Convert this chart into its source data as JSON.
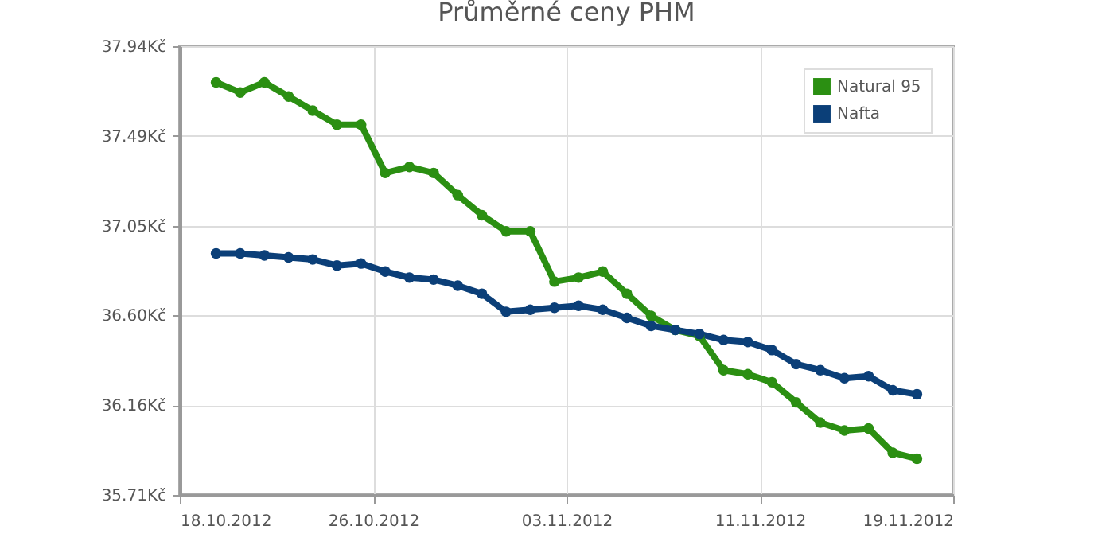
{
  "chart_data": {
    "type": "line",
    "title": "Průměrné ceny PHM",
    "x": [
      "2012-10-19T12:00",
      "2012-10-20T12:00",
      "2012-10-21T12:00",
      "2012-10-22T12:00",
      "2012-10-23T12:00",
      "2012-10-24T12:00",
      "2012-10-25T12:00",
      "2012-10-26T12:00",
      "2012-10-27T12:00",
      "2012-10-28T12:00",
      "2012-10-29T12:00",
      "2012-10-30T12:00",
      "2012-10-31T12:00",
      "2012-11-01T12:00",
      "2012-11-02T12:00",
      "2012-11-03T12:00",
      "2012-11-04T12:00",
      "2012-11-05T12:00",
      "2012-11-06T12:00",
      "2012-11-07T12:00",
      "2012-11-08T12:00",
      "2012-11-09T12:00",
      "2012-11-10T12:00",
      "2012-11-11T12:00",
      "2012-11-12T12:00",
      "2012-11-13T12:00",
      "2012-11-14T12:00",
      "2012-11-15T12:00",
      "2012-11-16T12:00",
      "2012-11-17T12:00"
    ],
    "series": [
      {
        "name": "Natural 95",
        "color": "#2b8f12",
        "values": [
          37.76,
          37.71,
          37.76,
          37.69,
          37.62,
          37.55,
          37.55,
          37.31,
          37.34,
          37.31,
          37.2,
          37.1,
          37.02,
          37.02,
          36.77,
          36.79,
          36.82,
          36.71,
          36.6,
          36.53,
          36.5,
          36.33,
          36.31,
          36.27,
          36.17,
          36.07,
          36.03,
          36.04,
          35.92,
          35.89
        ]
      },
      {
        "name": "Nafta",
        "color": "#0b3f78",
        "values": [
          36.91,
          36.91,
          36.9,
          36.89,
          36.88,
          36.85,
          36.86,
          36.82,
          36.79,
          36.78,
          36.75,
          36.71,
          36.62,
          36.63,
          36.64,
          36.65,
          36.63,
          36.59,
          36.55,
          36.53,
          36.51,
          36.48,
          36.47,
          36.43,
          36.36,
          36.33,
          36.29,
          36.3,
          36.23,
          36.21
        ]
      }
    ],
    "xlim": [
      "2012-10-18",
      "2012-11-19"
    ],
    "xticks": [
      {
        "value": "2012-10-18",
        "label": "18.10.2012"
      },
      {
        "value": "2012-10-26",
        "label": "26.10.2012"
      },
      {
        "value": "2012-11-03",
        "label": "03.11.2012"
      },
      {
        "value": "2012-11-11",
        "label": "11.11.2012"
      },
      {
        "value": "2012-11-19",
        "label": "19.11.2012"
      }
    ],
    "ylim": [
      35.71,
      37.94
    ],
    "yticks": [
      {
        "value": 35.71,
        "label": "35.71Kč"
      },
      {
        "value": 36.156,
        "label": "36.16Kč"
      },
      {
        "value": 36.602,
        "label": "36.60Kč"
      },
      {
        "value": 37.048,
        "label": "37.05Kč"
      },
      {
        "value": 37.494,
        "label": "37.49Kč"
      },
      {
        "value": 37.94,
        "label": "37.94Kč"
      }
    ],
    "grid": true,
    "legend": "top right",
    "marker": "circle",
    "line_style": "solid"
  }
}
